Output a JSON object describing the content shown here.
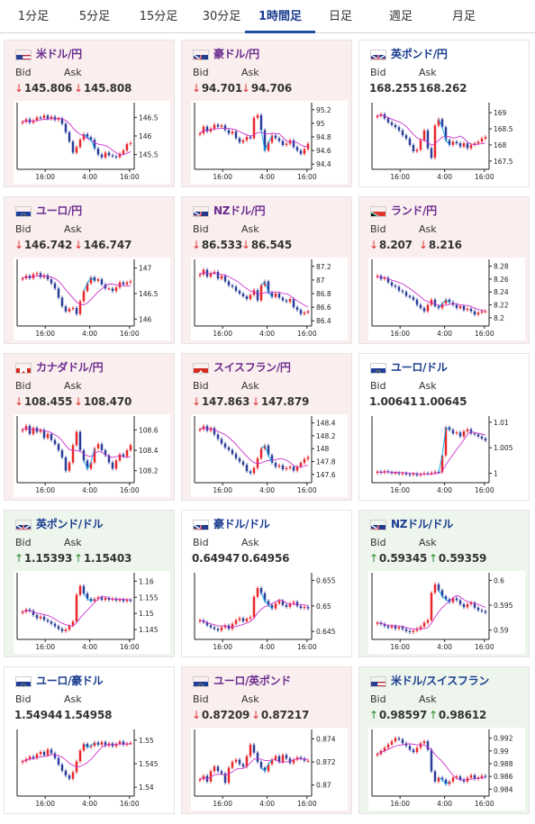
{
  "tabs": [
    {
      "label": "1分足",
      "active": false
    },
    {
      "label": "5分足",
      "active": false
    },
    {
      "label": "15分足",
      "active": false
    },
    {
      "label": "30分足",
      "active": false
    },
    {
      "label": "1時間足",
      "active": true
    },
    {
      "label": "日足",
      "active": false
    },
    {
      "label": "週足",
      "active": false
    },
    {
      "label": "月足",
      "active": false
    }
  ],
  "labels": {
    "bid": "Bid",
    "ask": "Ask"
  },
  "colors": {
    "accent": "#1f4fa0",
    "down_bg": "#fbeeee",
    "up_bg": "#edf5ec",
    "down_arrow": "#d33333",
    "up_arrow": "#2a8a2a",
    "candle_up": "#e8262a",
    "candle_down": "#2b3d9a",
    "avg_line": "#cc33cc",
    "current_line": "#00aaee"
  },
  "cards": [
    {
      "pair": "米ドル/円",
      "flag": "us",
      "trend": "down",
      "bid": "145.806",
      "ask": "145.808",
      "chart_data": {
        "type": "candlestick",
        "x_ticks": [
          "16:00",
          "4:00",
          "16:00"
        ],
        "y_ticks": [
          "146.5",
          "146",
          "145.5"
        ],
        "ylim": [
          145.15,
          146.8
        ],
        "close": [
          146.38,
          146.45,
          146.36,
          146.42,
          146.5,
          146.48,
          146.55,
          146.46,
          146.52,
          146.43,
          146.47,
          146.33,
          146.1,
          145.85,
          145.55,
          145.7,
          145.9,
          146.05,
          145.97,
          145.9,
          145.66,
          145.5,
          145.42,
          145.55,
          145.48,
          145.45,
          145.43,
          145.52,
          145.61,
          145.78,
          145.81
        ]
      }
    },
    {
      "pair": "豪ドル/円",
      "flag": "au",
      "trend": "down",
      "bid": "94.701",
      "ask": "94.706",
      "chart_data": {
        "type": "candlestick",
        "x_ticks": [
          "16:00",
          "4:00",
          "16:00"
        ],
        "y_ticks": [
          "95.2",
          "95",
          "94.8",
          "94.6",
          "94.4"
        ],
        "ylim": [
          94.35,
          95.25
        ],
        "close": [
          94.85,
          94.95,
          94.88,
          94.92,
          94.98,
          94.95,
          94.97,
          94.9,
          94.85,
          94.88,
          94.78,
          94.72,
          94.75,
          94.8,
          94.78,
          95.08,
          95.12,
          94.9,
          94.6,
          94.72,
          94.82,
          94.78,
          94.74,
          94.68,
          94.7,
          94.75,
          94.65,
          94.6,
          94.55,
          94.62,
          94.7
        ]
      }
    },
    {
      "pair": "英ポンド/円",
      "flag": "gb",
      "trend": "neutral",
      "bid": "168.255",
      "ask": "168.262",
      "chart_data": {
        "type": "candlestick",
        "x_ticks": [
          "16:00",
          "4:00",
          "16:00"
        ],
        "y_ticks": [
          "169",
          "168.5",
          "168",
          "167.5"
        ],
        "ylim": [
          167.3,
          169.2
        ],
        "close": [
          168.9,
          168.96,
          168.82,
          168.7,
          168.62,
          168.55,
          168.45,
          168.3,
          168.2,
          168.0,
          167.8,
          167.85,
          168.15,
          168.45,
          167.9,
          167.6,
          168.6,
          168.8,
          168.55,
          168.15,
          168.0,
          168.1,
          168.05,
          167.95,
          168.05,
          167.9,
          168.0,
          168.05,
          168.1,
          168.2,
          168.25
        ]
      }
    },
    {
      "pair": "ユーロ/円",
      "flag": "eu",
      "trend": "down",
      "bid": "146.742",
      "ask": "146.747",
      "chart_data": {
        "type": "candlestick",
        "x_ticks": [
          "16:00",
          "4:00",
          "16:00"
        ],
        "y_ticks": [
          "147",
          "146.5",
          "146"
        ],
        "ylim": [
          145.9,
          147.1
        ],
        "close": [
          146.8,
          146.85,
          146.8,
          146.88,
          146.9,
          146.82,
          146.86,
          146.78,
          146.7,
          146.6,
          146.42,
          146.25,
          146.15,
          146.2,
          146.22,
          146.1,
          146.35,
          146.55,
          146.7,
          146.82,
          146.75,
          146.78,
          146.68,
          146.6,
          146.6,
          146.55,
          146.62,
          146.72,
          146.68,
          146.72,
          146.74
        ]
      }
    },
    {
      "pair": "NZドル/円",
      "flag": "nz",
      "trend": "down",
      "bid": "86.533",
      "ask": "86.545",
      "chart_data": {
        "type": "candlestick",
        "x_ticks": [
          "16:00",
          "4:00",
          "16:00"
        ],
        "y_ticks": [
          "87.2",
          "87",
          "86.8",
          "86.6",
          "86.4"
        ],
        "ylim": [
          86.35,
          87.25
        ],
        "close": [
          87.08,
          87.15,
          87.05,
          87.1,
          87.12,
          87.02,
          87.06,
          86.98,
          86.92,
          86.9,
          86.84,
          86.8,
          86.76,
          86.72,
          86.78,
          86.85,
          86.7,
          86.92,
          86.98,
          86.82,
          86.75,
          86.8,
          86.74,
          86.7,
          86.68,
          86.72,
          86.6,
          86.56,
          86.5,
          86.52,
          86.54
        ]
      }
    },
    {
      "pair": "ランド/円",
      "flag": "za",
      "trend": "down",
      "bid": "8.207",
      "ask": "8.216",
      "chart_data": {
        "type": "candlestick",
        "x_ticks": [
          "16:00",
          "4:00",
          "16:00"
        ],
        "y_ticks": [
          "8.28",
          "8.26",
          "8.24",
          "8.22",
          "8.2"
        ],
        "ylim": [
          8.19,
          8.285
        ],
        "close": [
          8.265,
          8.26,
          8.262,
          8.255,
          8.25,
          8.248,
          8.242,
          8.24,
          8.234,
          8.232,
          8.228,
          8.22,
          8.215,
          8.21,
          8.22,
          8.228,
          8.218,
          8.215,
          8.222,
          8.228,
          8.224,
          8.22,
          8.215,
          8.218,
          8.212,
          8.214,
          8.21,
          8.205,
          8.208,
          8.21,
          8.21
        ]
      }
    },
    {
      "pair": "カナダドル/円",
      "flag": "ca",
      "trend": "down",
      "bid": "108.455",
      "ask": "108.470",
      "chart_data": {
        "type": "candlestick",
        "x_ticks": [
          "16:00",
          "4:00",
          "16:00"
        ],
        "y_ticks": [
          "108.6",
          "108.4",
          "108.2"
        ],
        "ylim": [
          108.1,
          108.7
        ],
        "close": [
          108.6,
          108.64,
          108.56,
          108.62,
          108.58,
          108.6,
          108.52,
          108.56,
          108.5,
          108.46,
          108.4,
          108.33,
          108.2,
          108.28,
          108.45,
          108.58,
          108.4,
          108.3,
          108.22,
          108.28,
          108.42,
          108.46,
          108.4,
          108.35,
          108.28,
          108.22,
          108.3,
          108.36,
          108.34,
          108.4,
          108.45
        ]
      }
    },
    {
      "pair": "スイスフラン/円",
      "flag": "ch",
      "trend": "down",
      "bid": "147.863",
      "ask": "147.879",
      "chart_data": {
        "type": "candlestick",
        "x_ticks": [
          "16:00",
          "4:00",
          "16:00"
        ],
        "y_ticks": [
          "148.4",
          "148.2",
          "148",
          "147.8",
          "147.6"
        ],
        "ylim": [
          147.5,
          148.45
        ],
        "close": [
          148.3,
          148.35,
          148.28,
          148.32,
          148.22,
          148.15,
          148.08,
          148.02,
          147.98,
          147.92,
          147.85,
          147.8,
          147.75,
          147.65,
          147.62,
          147.7,
          147.85,
          148.0,
          148.05,
          147.9,
          147.78,
          147.72,
          147.74,
          147.68,
          147.7,
          147.72,
          147.66,
          147.72,
          147.78,
          147.84,
          147.87
        ]
      }
    },
    {
      "pair": "ユーロ/ドル",
      "flag": "eu-us",
      "trend": "neutral",
      "bid": "1.00641",
      "ask": "1.00645",
      "chart_data": {
        "type": "candlestick",
        "x_ticks": [
          "16:00",
          "4:00",
          "16:00"
        ],
        "y_ticks": [
          "1.01",
          "1.005",
          "1"
        ],
        "ylim": [
          0.9985,
          1.0105
        ],
        "close": [
          1.0003,
          1.0001,
          1.0004,
          1.0002,
          1.0,
          1.0001,
          0.9999,
          1.0,
          0.9998,
          0.9997,
          0.9999,
          0.9996,
          0.9998,
          1.0,
          0.9999,
          1.0001,
          1.0003,
          1.0002,
          1.0035,
          1.009,
          1.0085,
          1.0078,
          1.008,
          1.0072,
          1.0082,
          1.0086,
          1.0078,
          1.0076,
          1.0072,
          1.0068,
          1.0064
        ]
      }
    },
    {
      "pair": "英ポンド/ドル",
      "flag": "gb-us",
      "trend": "up",
      "bid": "1.15393",
      "ask": "1.15403",
      "chart_data": {
        "type": "candlestick",
        "x_ticks": [
          "16:00",
          "4:00",
          "16:00"
        ],
        "y_ticks": [
          "1.16",
          "1.155",
          "1.15",
          "1.145"
        ],
        "ylim": [
          1.1425,
          1.1615
        ],
        "close": [
          1.1505,
          1.1512,
          1.1508,
          1.1495,
          1.1485,
          1.149,
          1.148,
          1.1475,
          1.1468,
          1.146,
          1.1452,
          1.1445,
          1.145,
          1.1462,
          1.1475,
          1.1558,
          1.1585,
          1.1562,
          1.1545,
          1.1538,
          1.1545,
          1.155,
          1.1542,
          1.1548,
          1.1542,
          1.1546,
          1.154,
          1.1543,
          1.1538,
          1.1542,
          1.1539
        ]
      }
    },
    {
      "pair": "豪ドル/ドル",
      "flag": "au-us",
      "trend": "neutral",
      "bid": "0.64947",
      "ask": "0.64956",
      "chart_data": {
        "type": "candlestick",
        "x_ticks": [
          "16:00",
          "4:00",
          "16:00"
        ],
        "y_ticks": [
          "0.655",
          "0.65",
          "0.645"
        ],
        "ylim": [
          0.6438,
          0.6558
        ],
        "close": [
          0.6472,
          0.6468,
          0.6462,
          0.6458,
          0.6455,
          0.6452,
          0.6458,
          0.6462,
          0.6455,
          0.6465,
          0.6472,
          0.6476,
          0.647,
          0.6475,
          0.6478,
          0.6518,
          0.6535,
          0.6525,
          0.651,
          0.6502,
          0.6495,
          0.6505,
          0.651,
          0.6502,
          0.6498,
          0.6505,
          0.6508,
          0.65,
          0.6496,
          0.6498,
          0.6495
        ]
      }
    },
    {
      "pair": "NZドル/ドル",
      "flag": "nz-us",
      "trend": "up",
      "bid": "0.59345",
      "ask": "0.59359",
      "chart_data": {
        "type": "candlestick",
        "x_ticks": [
          "16:00",
          "4:00",
          "16:00"
        ],
        "y_ticks": [
          "0.6",
          "0.595",
          "0.59"
        ],
        "ylim": [
          0.5885,
          0.6008
        ],
        "close": [
          0.5915,
          0.5912,
          0.5908,
          0.5905,
          0.5908,
          0.5903,
          0.5906,
          0.5902,
          0.5898,
          0.5896,
          0.5899,
          0.5903,
          0.5907,
          0.5915,
          0.592,
          0.5975,
          0.5992,
          0.598,
          0.5968,
          0.5962,
          0.5956,
          0.5964,
          0.596,
          0.5952,
          0.5946,
          0.5952,
          0.5955,
          0.5945,
          0.594,
          0.5938,
          0.5935
        ]
      }
    },
    {
      "pair": "ユーロ/豪ドル",
      "flag": "eu-au",
      "trend": "neutral",
      "bid": "1.54944",
      "ask": "1.54958",
      "chart_data": {
        "type": "candlestick",
        "x_ticks": [
          "16:00",
          "4:00",
          "16:00"
        ],
        "y_ticks": [
          "1.55",
          "1.545",
          "1.54"
        ],
        "ylim": [
          1.5385,
          1.5515
        ],
        "close": [
          1.5455,
          1.546,
          1.5465,
          1.5462,
          1.547,
          1.5475,
          1.5468,
          1.548,
          1.5472,
          1.5462,
          1.5448,
          1.5435,
          1.5425,
          1.5418,
          1.5432,
          1.5455,
          1.5478,
          1.5492,
          1.5485,
          1.5488,
          1.5495,
          1.549,
          1.5496,
          1.5488,
          1.5493,
          1.5487,
          1.5492,
          1.5497,
          1.549,
          1.5493,
          1.5494
        ]
      }
    },
    {
      "pair": "ユーロ/英ポンド",
      "flag": "eu-gb",
      "trend": "down",
      "bid": "0.87209",
      "ask": "0.87217",
      "chart_data": {
        "type": "candlestick",
        "x_ticks": [
          "16:00",
          "4:00",
          "16:00"
        ],
        "y_ticks": [
          "0.874",
          "0.872",
          "0.87"
        ],
        "ylim": [
          0.8692,
          0.8745
        ],
        "close": [
          0.8705,
          0.8708,
          0.8703,
          0.8712,
          0.8716,
          0.8712,
          0.871,
          0.8702,
          0.8715,
          0.872,
          0.8722,
          0.8718,
          0.8716,
          0.8725,
          0.8735,
          0.8728,
          0.872,
          0.8715,
          0.8712,
          0.8718,
          0.8722,
          0.8725,
          0.872,
          0.8726,
          0.8723,
          0.8719,
          0.8722,
          0.8724,
          0.8723,
          0.8721,
          0.8721
        ]
      }
    },
    {
      "pair": "米ドル/スイスフラン",
      "flag": "us-ch",
      "trend": "up",
      "bid": "0.98597",
      "ask": "0.98612",
      "chart_data": {
        "type": "candlestick",
        "x_ticks": [
          "16:00",
          "4:00",
          "16:00"
        ],
        "y_ticks": [
          "0.992",
          "0.99",
          "0.988",
          "0.986",
          "0.984"
        ],
        "ylim": [
          0.9832,
          0.9928
        ],
        "close": [
          0.9895,
          0.99,
          0.9905,
          0.991,
          0.9915,
          0.992,
          0.9918,
          0.9912,
          0.9908,
          0.9902,
          0.9898,
          0.9905,
          0.9912,
          0.9915,
          0.9902,
          0.9868,
          0.9852,
          0.9858,
          0.9855,
          0.9848,
          0.9852,
          0.9858,
          0.986,
          0.9855,
          0.9852,
          0.9858,
          0.9862,
          0.9856,
          0.9858,
          0.9861,
          0.986
        ]
      }
    }
  ]
}
